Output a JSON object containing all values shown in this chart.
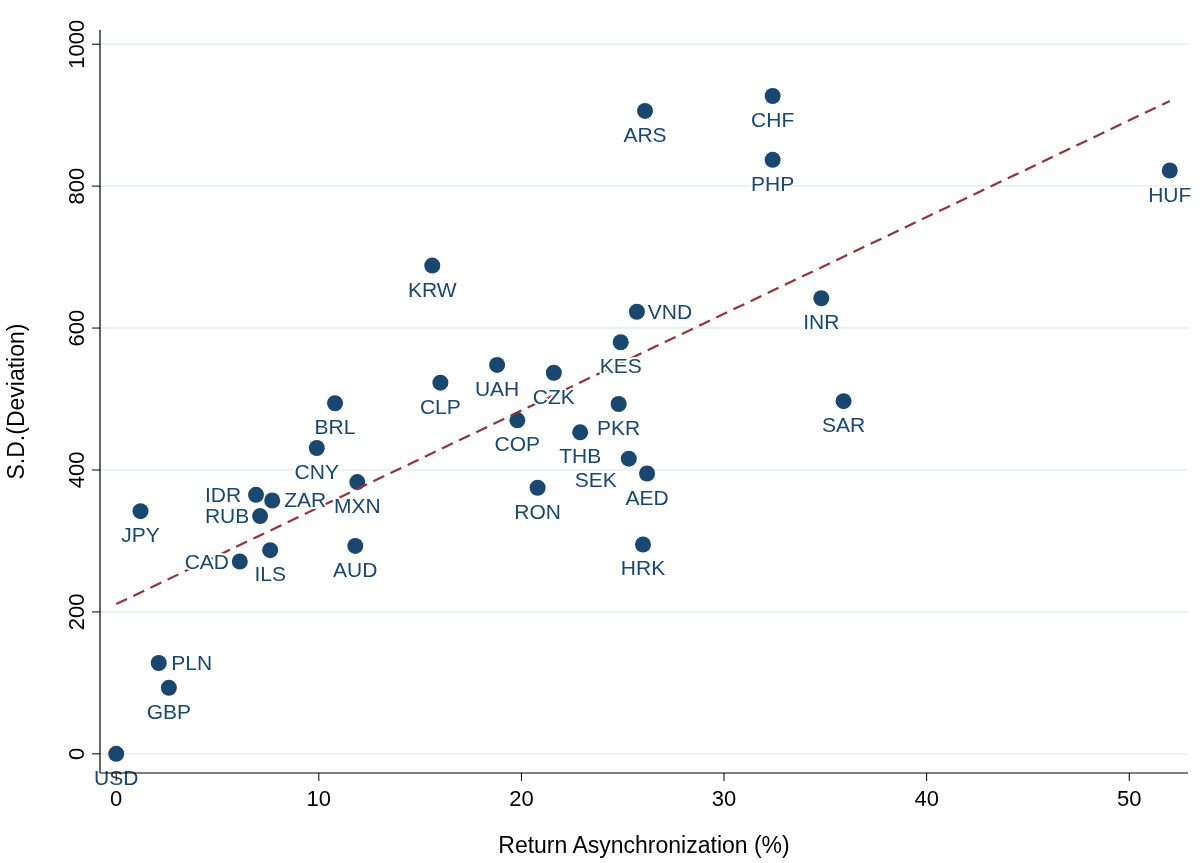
{
  "chart_data": {
    "type": "scatter",
    "xlabel": "Return Asynchronization (%)",
    "ylabel": "S.D.(Deviation)",
    "xlim": [
      -0.8,
      52.9
    ],
    "ylim": [
      -27,
      1020
    ],
    "xticks": [
      0,
      10,
      20,
      30,
      40,
      50
    ],
    "yticks": [
      0,
      200,
      400,
      600,
      800,
      1000
    ],
    "grid": "y",
    "series": [
      {
        "color": "#1a476f",
        "marker": "circle",
        "x": [
          0,
          2.1,
          2.6,
          1.2,
          6.9,
          7.7,
          7.1,
          7.6,
          6.1,
          10.8,
          9.9,
          11.9,
          11.8,
          25.7,
          24.9,
          18.8,
          21.6,
          16,
          24.8,
          19.8,
          22.9,
          25.3,
          26.2,
          20.8,
          26,
          15.6,
          26.1,
          32.4,
          32.4,
          52,
          34.8,
          35.9
        ],
        "values": [
          0,
          128,
          93,
          342,
          365,
          357,
          335,
          287,
          271,
          494,
          431,
          383,
          293,
          623,
          580,
          548,
          537,
          523,
          493,
          470,
          453,
          416,
          395,
          375,
          295,
          688,
          906,
          927,
          837,
          822,
          642,
          497
        ]
      },
      {
        "type": "line",
        "color": "#90353b",
        "line_style": "dashed",
        "x": [
          0,
          52
        ],
        "values": [
          211,
          920
        ]
      }
    ],
    "annotations": [
      {
        "text": "USD",
        "x": 0,
        "y": 0
      },
      {
        "text": "PLN",
        "x": 2.1,
        "y": 128
      },
      {
        "text": "GBP",
        "x": 2.6,
        "y": 93
      },
      {
        "text": "JPY",
        "x": 1.2,
        "y": 342
      },
      {
        "text": "IDR",
        "x": 6.9,
        "y": 365
      },
      {
        "text": "ZAR",
        "x": 7.7,
        "y": 357
      },
      {
        "text": "RUB",
        "x": 7.1,
        "y": 335
      },
      {
        "text": "ILS",
        "x": 7.6,
        "y": 287
      },
      {
        "text": "CAD",
        "x": 6.1,
        "y": 271
      },
      {
        "text": "BRL",
        "x": 10.8,
        "y": 494
      },
      {
        "text": "CNY",
        "x": 9.9,
        "y": 431
      },
      {
        "text": "MXN",
        "x": 11.9,
        "y": 383
      },
      {
        "text": "AUD",
        "x": 11.8,
        "y": 293
      },
      {
        "text": "VND",
        "x": 25.7,
        "y": 623
      },
      {
        "text": "KES",
        "x": 24.9,
        "y": 580
      },
      {
        "text": "UAH",
        "x": 18.8,
        "y": 548
      },
      {
        "text": "CZK",
        "x": 21.6,
        "y": 537
      },
      {
        "text": "CLP",
        "x": 16,
        "y": 523
      },
      {
        "text": "PKR",
        "x": 24.8,
        "y": 493
      },
      {
        "text": "COP",
        "x": 19.8,
        "y": 470
      },
      {
        "text": "THB",
        "x": 22.9,
        "y": 453
      },
      {
        "text": "SEK",
        "x": 25.3,
        "y": 416
      },
      {
        "text": "AED",
        "x": 26.2,
        "y": 395
      },
      {
        "text": "RON",
        "x": 20.8,
        "y": 375
      },
      {
        "text": "HRK",
        "x": 26,
        "y": 295
      },
      {
        "text": "KRW",
        "x": 15.6,
        "y": 688
      },
      {
        "text": "ARS",
        "x": 26.1,
        "y": 906
      },
      {
        "text": "CHF",
        "x": 32.4,
        "y": 927
      },
      {
        "text": "PHP",
        "x": 32.4,
        "y": 837
      },
      {
        "text": "HUF",
        "x": 52,
        "y": 822
      },
      {
        "text": "INR",
        "x": 34.8,
        "y": 642
      },
      {
        "text": "SAR",
        "x": 35.9,
        "y": 497
      }
    ]
  }
}
